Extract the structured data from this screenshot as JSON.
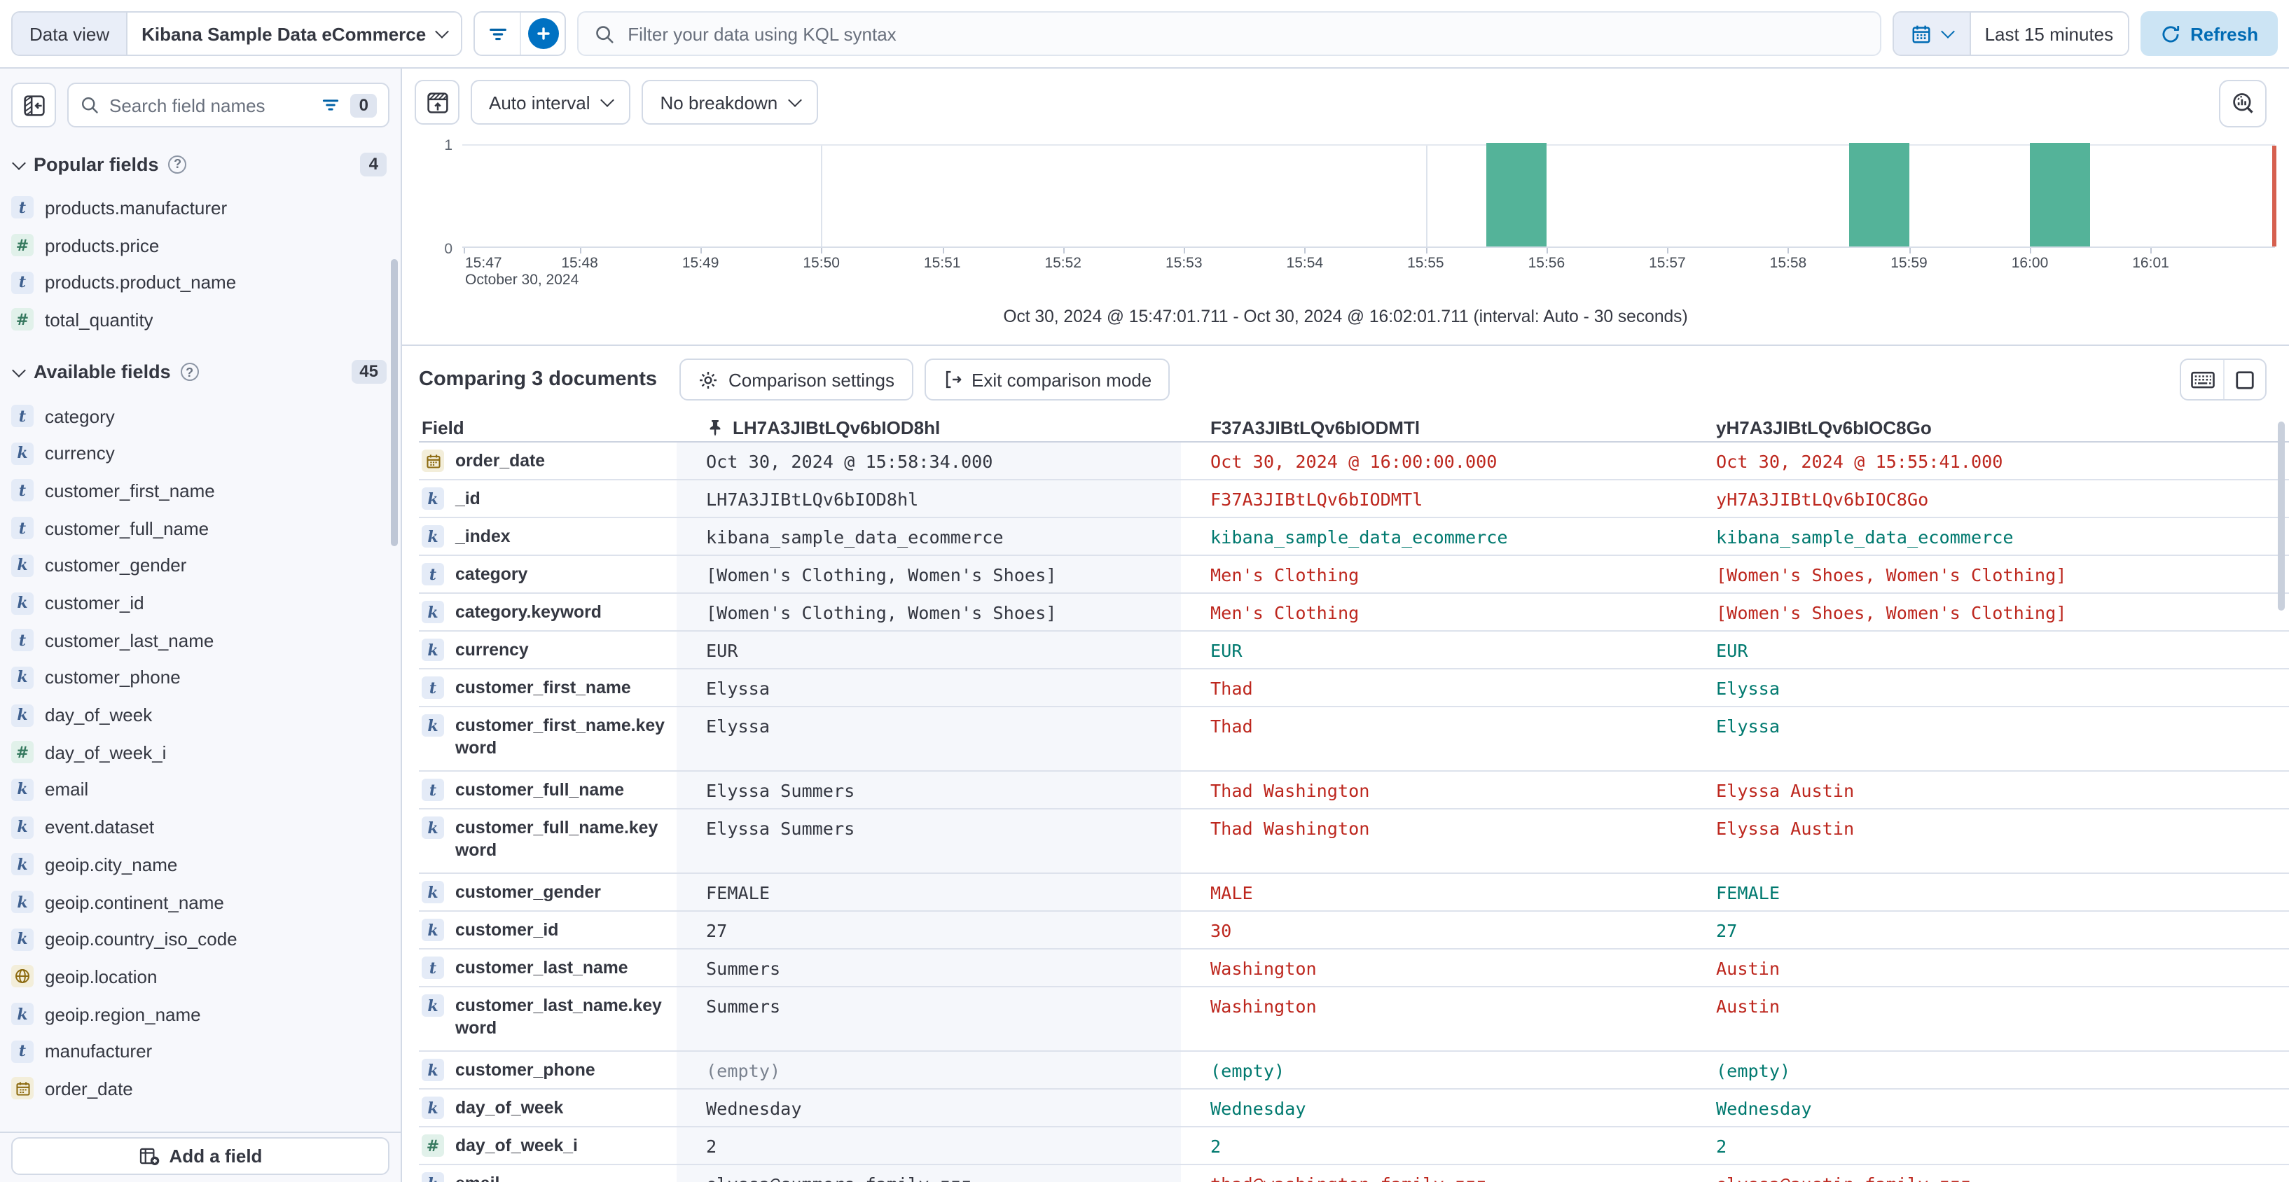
{
  "topbar": {
    "data_view_label": "Data view",
    "data_view_value": "Kibana Sample Data eCommerce",
    "kql_placeholder": "Filter your data using KQL syntax",
    "time_range": "Last 15 minutes",
    "refresh_label": "Refresh"
  },
  "sidebar": {
    "search_placeholder": "Search field names",
    "filter_count": "0",
    "popular": {
      "title": "Popular fields",
      "count": "4",
      "items": [
        {
          "type": "text",
          "name": "products.manufacturer"
        },
        {
          "type": "number",
          "name": "products.price"
        },
        {
          "type": "text",
          "name": "products.product_name"
        },
        {
          "type": "number",
          "name": "total_quantity"
        }
      ]
    },
    "available": {
      "title": "Available fields",
      "count": "45",
      "items": [
        {
          "type": "text",
          "name": "category"
        },
        {
          "type": "keyword",
          "name": "currency"
        },
        {
          "type": "text",
          "name": "customer_first_name"
        },
        {
          "type": "text",
          "name": "customer_full_name"
        },
        {
          "type": "keyword",
          "name": "customer_gender"
        },
        {
          "type": "keyword",
          "name": "customer_id"
        },
        {
          "type": "text",
          "name": "customer_last_name"
        },
        {
          "type": "keyword",
          "name": "customer_phone"
        },
        {
          "type": "keyword",
          "name": "day_of_week"
        },
        {
          "type": "number",
          "name": "day_of_week_i"
        },
        {
          "type": "keyword",
          "name": "email"
        },
        {
          "type": "keyword",
          "name": "event.dataset"
        },
        {
          "type": "keyword",
          "name": "geoip.city_name"
        },
        {
          "type": "keyword",
          "name": "geoip.continent_name"
        },
        {
          "type": "keyword",
          "name": "geoip.country_iso_code"
        },
        {
          "type": "geo",
          "name": "geoip.location"
        },
        {
          "type": "keyword",
          "name": "geoip.region_name"
        },
        {
          "type": "text",
          "name": "manufacturer"
        },
        {
          "type": "date",
          "name": "order_date"
        }
      ]
    },
    "add_field_label": "Add a field"
  },
  "chart": {
    "interval_label": "Auto interval",
    "breakdown_label": "No breakdown"
  },
  "chart_data": {
    "type": "bar",
    "x_ticks": [
      "15:47",
      "15:48",
      "15:49",
      "15:50",
      "15:51",
      "15:52",
      "15:53",
      "15:54",
      "15:55",
      "15:56",
      "15:57",
      "15:58",
      "15:59",
      "16:00",
      "16:01"
    ],
    "x_date_label": "October 30, 2024",
    "y_ticks": [
      "0",
      "1"
    ],
    "ylim": [
      0,
      1
    ],
    "time_start": "15:47:01.711",
    "time_end": "16:02:01.711",
    "interval_seconds": 30,
    "buckets": [
      {
        "time": "15:55:30",
        "count": 1
      },
      {
        "time": "15:58:30",
        "count": 1
      },
      {
        "time": "16:00:00",
        "count": 1
      }
    ],
    "bar_color": "#54b399",
    "end_marker_color": "#d6604f",
    "caption": "Oct 30, 2024 @ 15:47:01.711 - Oct 30, 2024 @ 16:02:01.711 (interval: Auto - 30 seconds)"
  },
  "comparison": {
    "title": "Comparing 3 documents",
    "settings_label": "Comparison settings",
    "exit_label": "Exit comparison mode"
  },
  "table": {
    "field_header": "Field",
    "doc_ids": [
      "LH7A3JIBtLQv6bIOD8hl",
      "F37A3JIBtLQv6bIODMTl",
      "yH7A3JIBtLQv6bIOC8Go"
    ],
    "rows": [
      {
        "field": "order_date",
        "type": "date",
        "wrap": false,
        "values": [
          {
            "text": "Oct 30, 2024 @ 15:58:34.000",
            "state": "base"
          },
          {
            "text": "Oct 30, 2024 @ 16:00:00.000",
            "state": "diff"
          },
          {
            "text": "Oct 30, 2024 @ 15:55:41.000",
            "state": "diff"
          }
        ]
      },
      {
        "field": "_id",
        "type": "keyword",
        "wrap": false,
        "values": [
          {
            "text": "LH7A3JIBtLQv6bIOD8hl",
            "state": "base"
          },
          {
            "text": "F37A3JIBtLQv6bIODMTl",
            "state": "diff"
          },
          {
            "text": "yH7A3JIBtLQv6bIOC8Go",
            "state": "diff"
          }
        ]
      },
      {
        "field": "_index",
        "type": "keyword",
        "wrap": false,
        "values": [
          {
            "text": "kibana_sample_data_ecommerce",
            "state": "base"
          },
          {
            "text": "kibana_sample_data_ecommerce",
            "state": "match"
          },
          {
            "text": "kibana_sample_data_ecommerce",
            "state": "match"
          }
        ]
      },
      {
        "field": "category",
        "type": "text",
        "wrap": false,
        "values": [
          {
            "text": "[Women's Clothing, Women's Shoes]",
            "state": "base"
          },
          {
            "text": "Men's Clothing",
            "state": "diff"
          },
          {
            "text": "[Women's Shoes, Women's Clothing]",
            "state": "diff"
          }
        ]
      },
      {
        "field": "category.keyword",
        "type": "keyword",
        "wrap": false,
        "values": [
          {
            "text": "[Women's Clothing, Women's Shoes]",
            "state": "base"
          },
          {
            "text": "Men's Clothing",
            "state": "diff"
          },
          {
            "text": "[Women's Shoes, Women's Clothing]",
            "state": "diff"
          }
        ]
      },
      {
        "field": "currency",
        "type": "keyword",
        "wrap": false,
        "values": [
          {
            "text": "EUR",
            "state": "base"
          },
          {
            "text": "EUR",
            "state": "match"
          },
          {
            "text": "EUR",
            "state": "match"
          }
        ]
      },
      {
        "field": "customer_first_name",
        "type": "text",
        "wrap": false,
        "values": [
          {
            "text": "Elyssa",
            "state": "base"
          },
          {
            "text": "Thad",
            "state": "diff"
          },
          {
            "text": "Elyssa",
            "state": "match"
          }
        ]
      },
      {
        "field": "customer_first_name.keyword",
        "type": "keyword",
        "wrap": true,
        "values": [
          {
            "text": "Elyssa",
            "state": "base"
          },
          {
            "text": "Thad",
            "state": "diff"
          },
          {
            "text": "Elyssa",
            "state": "match"
          }
        ]
      },
      {
        "field": "customer_full_name",
        "type": "text",
        "wrap": false,
        "values": [
          {
            "text": "Elyssa Summers",
            "state": "base"
          },
          {
            "text": "Thad Washington",
            "state": "diff"
          },
          {
            "text": "Elyssa Austin",
            "state": "diff"
          }
        ]
      },
      {
        "field": "customer_full_name.keyword",
        "type": "keyword",
        "wrap": true,
        "values": [
          {
            "text": "Elyssa Summers",
            "state": "base"
          },
          {
            "text": "Thad Washington",
            "state": "diff"
          },
          {
            "text": "Elyssa Austin",
            "state": "diff"
          }
        ]
      },
      {
        "field": "customer_gender",
        "type": "keyword",
        "wrap": false,
        "values": [
          {
            "text": "FEMALE",
            "state": "base"
          },
          {
            "text": "MALE",
            "state": "diff"
          },
          {
            "text": "FEMALE",
            "state": "match"
          }
        ]
      },
      {
        "field": "customer_id",
        "type": "keyword",
        "wrap": false,
        "values": [
          {
            "text": "27",
            "state": "base"
          },
          {
            "text": "30",
            "state": "diff"
          },
          {
            "text": "27",
            "state": "match"
          }
        ]
      },
      {
        "field": "customer_last_name",
        "type": "text",
        "wrap": false,
        "values": [
          {
            "text": "Summers",
            "state": "base"
          },
          {
            "text": "Washington",
            "state": "diff"
          },
          {
            "text": "Austin",
            "state": "diff"
          }
        ]
      },
      {
        "field": "customer_last_name.keyword",
        "type": "keyword",
        "wrap": true,
        "values": [
          {
            "text": "Summers",
            "state": "base"
          },
          {
            "text": "Washington",
            "state": "diff"
          },
          {
            "text": "Austin",
            "state": "diff"
          }
        ]
      },
      {
        "field": "customer_phone",
        "type": "keyword",
        "wrap": false,
        "values": [
          {
            "text": "(empty)",
            "state": "muted"
          },
          {
            "text": "(empty)",
            "state": "match"
          },
          {
            "text": "(empty)",
            "state": "match"
          }
        ]
      },
      {
        "field": "day_of_week",
        "type": "keyword",
        "wrap": false,
        "values": [
          {
            "text": "Wednesday",
            "state": "base"
          },
          {
            "text": "Wednesday",
            "state": "match"
          },
          {
            "text": "Wednesday",
            "state": "match"
          }
        ]
      },
      {
        "field": "day_of_week_i",
        "type": "number",
        "wrap": false,
        "values": [
          {
            "text": "2",
            "state": "base"
          },
          {
            "text": "2",
            "state": "match"
          },
          {
            "text": "2",
            "state": "match"
          }
        ]
      },
      {
        "field": "email",
        "type": "keyword",
        "wrap": false,
        "values": [
          {
            "text": "elyssa@summers-family.zzz",
            "state": "base"
          },
          {
            "text": "thad@washington-family.zzz",
            "state": "diff"
          },
          {
            "text": "elyssa@austin-family.zzz",
            "state": "diff"
          }
        ]
      }
    ]
  }
}
